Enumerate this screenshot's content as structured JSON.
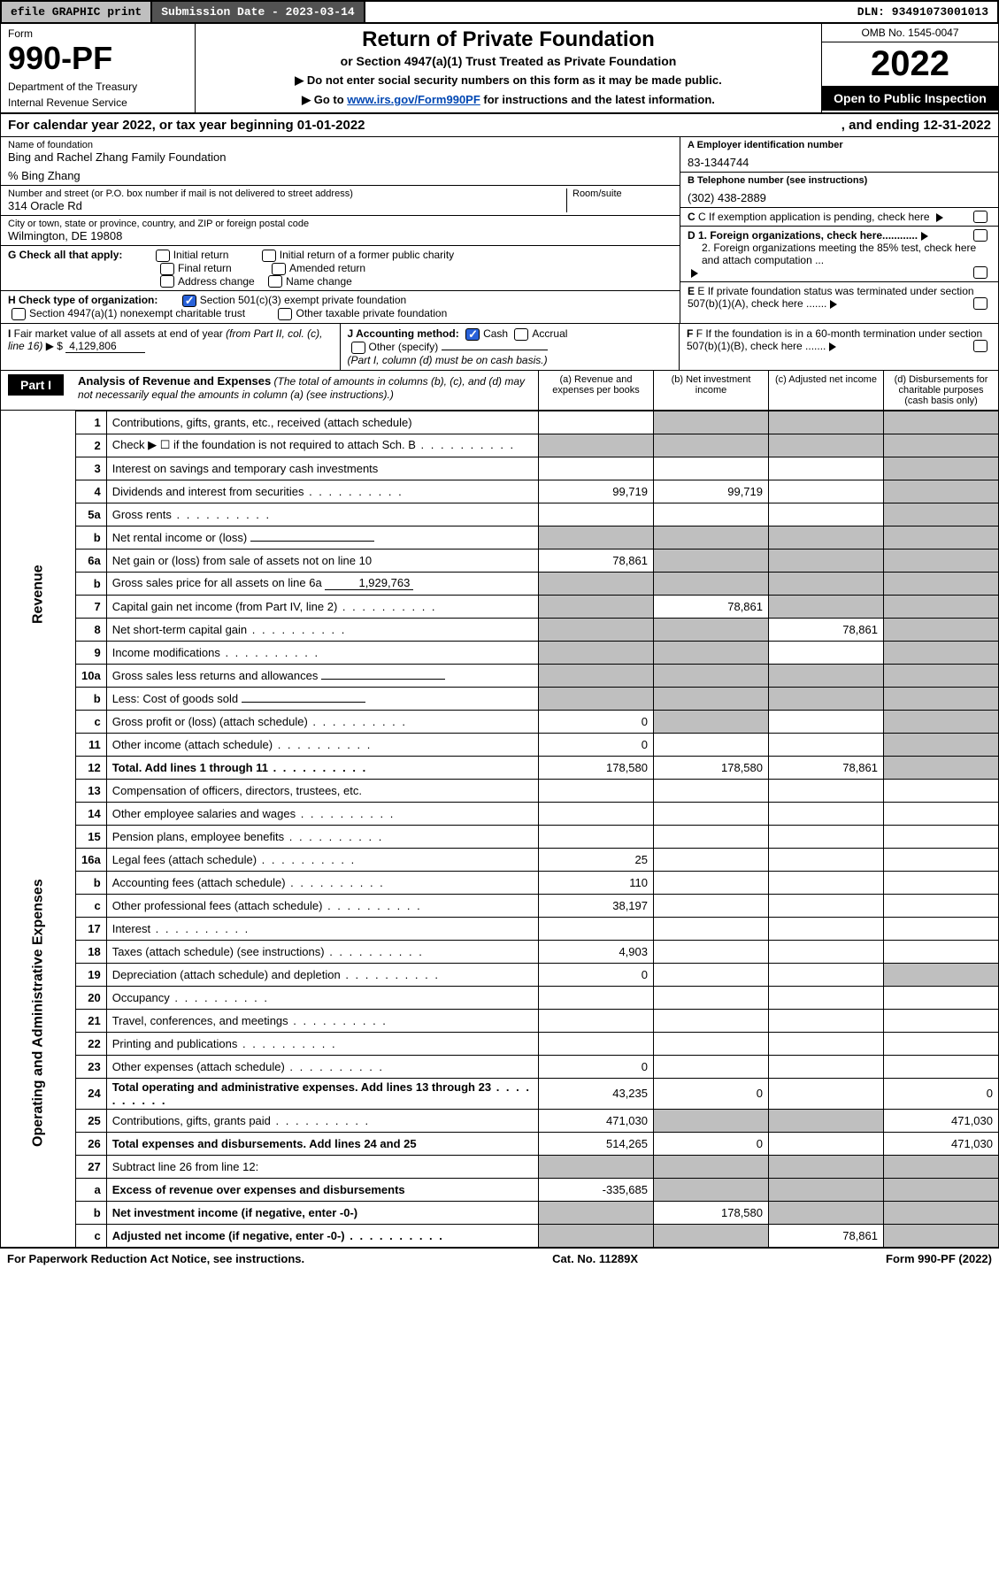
{
  "topbar": {
    "efile": "efile GRAPHIC print",
    "subdate_lbl": "Submission Date - 2023-03-14",
    "dln": "DLN: 93491073001013"
  },
  "header": {
    "form_lbl": "Form",
    "form_num": "990-PF",
    "dept": "Department of the Treasury",
    "irs": "Internal Revenue Service",
    "title": "Return of Private Foundation",
    "subtitle": "or Section 4947(a)(1) Trust Treated as Private Foundation",
    "instr1": "▶ Do not enter social security numbers on this form as it may be made public.",
    "instr2_pre": "▶ Go to ",
    "instr2_link": "www.irs.gov/Form990PF",
    "instr2_post": " for instructions and the latest information.",
    "omb": "OMB No. 1545-0047",
    "year": "2022",
    "open": "Open to Public Inspection"
  },
  "calyear": {
    "text": "For calendar year 2022, or tax year beginning 01-01-2022",
    "ending": ", and ending 12-31-2022"
  },
  "ident": {
    "name_lbl": "Name of foundation",
    "name": "Bing and Rachel Zhang Family Foundation",
    "care_of": "% Bing Zhang",
    "addr_lbl": "Number and street (or P.O. box number if mail is not delivered to street address)",
    "addr": "314 Oracle Rd",
    "room_lbl": "Room/suite",
    "city_lbl": "City or town, state or province, country, and ZIP or foreign postal code",
    "city": "Wilmington, DE  19808",
    "A_lbl": "A Employer identification number",
    "A_val": "83-1344744",
    "B_lbl": "B Telephone number (see instructions)",
    "B_val": "(302) 438-2889",
    "C_lbl": "C If exemption application is pending, check here",
    "D1_lbl": "D 1. Foreign organizations, check here............",
    "D2_lbl": "2. Foreign organizations meeting the 85% test, check here and attach computation ...",
    "E_lbl": "E  If private foundation status was terminated under section 507(b)(1)(A), check here .......",
    "F_lbl": "F  If the foundation is in a 60-month termination under section 507(b)(1)(B), check here .......",
    "G_lbl": "G Check all that apply:",
    "G_opts": [
      "Initial return",
      "Final return",
      "Address change",
      "Initial return of a former public charity",
      "Amended return",
      "Name change"
    ],
    "H_lbl": "H Check type of organization:",
    "H_opt1": "Section 501(c)(3) exempt private foundation",
    "H_opt2": "Section 4947(a)(1) nonexempt charitable trust",
    "H_opt3": "Other taxable private foundation",
    "I_lbl": "I Fair market value of all assets at end of year (from Part II, col. (c), line 16) ▶ $",
    "I_val": "4,129,806",
    "J_lbl": "J Accounting method:",
    "J_cash": "Cash",
    "J_accr": "Accrual",
    "J_other": "Other (specify)",
    "J_note": "(Part I, column (d) must be on cash basis.)"
  },
  "part1": {
    "part_lbl": "Part I",
    "title": "Analysis of Revenue and Expenses",
    "title_note": " (The total of amounts in columns (b), (c), and (d) may not necessarily equal the amounts in column (a) (see instructions).)",
    "col_a": "(a) Revenue and expenses per books",
    "col_b": "(b) Net investment income",
    "col_c": "(c) Adjusted net income",
    "col_d": "(d) Disbursements for charitable purposes (cash basis only)",
    "side_rev": "Revenue",
    "side_exp": "Operating and Administrative Expenses"
  },
  "rows": [
    {
      "n": "1",
      "d": "Contributions, gifts, grants, etc., received (attach schedule)",
      "a": "",
      "b": "grey",
      "c": "grey",
      "dd": "grey"
    },
    {
      "n": "2",
      "d": "Check ▶ ☐ if the foundation is not required to attach Sch. B",
      "dots": true,
      "a": "grey",
      "b": "grey",
      "c": "grey",
      "dd": "grey"
    },
    {
      "n": "3",
      "d": "Interest on savings and temporary cash investments",
      "a": "",
      "b": "",
      "c": "",
      "dd": "grey"
    },
    {
      "n": "4",
      "d": "Dividends and interest from securities",
      "dots": true,
      "a": "99,719",
      "b": "99,719",
      "c": "",
      "dd": "grey"
    },
    {
      "n": "5a",
      "d": "Gross rents",
      "dots": true,
      "a": "",
      "b": "",
      "c": "",
      "dd": "grey"
    },
    {
      "n": "b",
      "d": "Net rental income or (loss)",
      "a": "grey",
      "b": "grey",
      "c": "grey",
      "dd": "grey",
      "inline": true
    },
    {
      "n": "6a",
      "d": "Net gain or (loss) from sale of assets not on line 10",
      "a": "78,861",
      "b": "grey",
      "c": "grey",
      "dd": "grey"
    },
    {
      "n": "b",
      "d": "Gross sales price for all assets on line 6a",
      "a": "grey",
      "b": "grey",
      "c": "grey",
      "dd": "grey",
      "inline": true,
      "inline_val": "1,929,763"
    },
    {
      "n": "7",
      "d": "Capital gain net income (from Part IV, line 2)",
      "dots": true,
      "a": "grey",
      "b": "78,861",
      "c": "grey",
      "dd": "grey"
    },
    {
      "n": "8",
      "d": "Net short-term capital gain",
      "dots": true,
      "a": "grey",
      "b": "grey",
      "c": "78,861",
      "dd": "grey"
    },
    {
      "n": "9",
      "d": "Income modifications",
      "dots": true,
      "a": "grey",
      "b": "grey",
      "c": "",
      "dd": "grey"
    },
    {
      "n": "10a",
      "d": "Gross sales less returns and allowances",
      "a": "grey",
      "b": "grey",
      "c": "grey",
      "dd": "grey",
      "inline": true
    },
    {
      "n": "b",
      "d": "Less: Cost of goods sold",
      "dots": true,
      "a": "grey",
      "b": "grey",
      "c": "grey",
      "dd": "grey",
      "inline": true
    },
    {
      "n": "c",
      "d": "Gross profit or (loss) (attach schedule)",
      "dots": true,
      "a": "0",
      "b": "grey",
      "c": "",
      "dd": "grey"
    },
    {
      "n": "11",
      "d": "Other income (attach schedule)",
      "dots": true,
      "a": "0",
      "b": "",
      "c": "",
      "dd": "grey"
    },
    {
      "n": "12",
      "d": "Total. Add lines 1 through 11",
      "dots": true,
      "bold": true,
      "a": "178,580",
      "b": "178,580",
      "c": "78,861",
      "dd": "grey"
    },
    {
      "n": "13",
      "d": "Compensation of officers, directors, trustees, etc.",
      "a": "",
      "b": "",
      "c": "",
      "dd": ""
    },
    {
      "n": "14",
      "d": "Other employee salaries and wages",
      "dots": true,
      "a": "",
      "b": "",
      "c": "",
      "dd": ""
    },
    {
      "n": "15",
      "d": "Pension plans, employee benefits",
      "dots": true,
      "a": "",
      "b": "",
      "c": "",
      "dd": ""
    },
    {
      "n": "16a",
      "d": "Legal fees (attach schedule)",
      "dots": true,
      "a": "25",
      "b": "",
      "c": "",
      "dd": ""
    },
    {
      "n": "b",
      "d": "Accounting fees (attach schedule)",
      "dots": true,
      "a": "110",
      "b": "",
      "c": "",
      "dd": ""
    },
    {
      "n": "c",
      "d": "Other professional fees (attach schedule)",
      "dots": true,
      "a": "38,197",
      "b": "",
      "c": "",
      "dd": ""
    },
    {
      "n": "17",
      "d": "Interest",
      "dots": true,
      "a": "",
      "b": "",
      "c": "",
      "dd": ""
    },
    {
      "n": "18",
      "d": "Taxes (attach schedule) (see instructions)",
      "dots": true,
      "a": "4,903",
      "b": "",
      "c": "",
      "dd": ""
    },
    {
      "n": "19",
      "d": "Depreciation (attach schedule) and depletion",
      "dots": true,
      "a": "0",
      "b": "",
      "c": "",
      "dd": "grey"
    },
    {
      "n": "20",
      "d": "Occupancy",
      "dots": true,
      "a": "",
      "b": "",
      "c": "",
      "dd": ""
    },
    {
      "n": "21",
      "d": "Travel, conferences, and meetings",
      "dots": true,
      "a": "",
      "b": "",
      "c": "",
      "dd": ""
    },
    {
      "n": "22",
      "d": "Printing and publications",
      "dots": true,
      "a": "",
      "b": "",
      "c": "",
      "dd": ""
    },
    {
      "n": "23",
      "d": "Other expenses (attach schedule)",
      "dots": true,
      "a": "0",
      "b": "",
      "c": "",
      "dd": ""
    },
    {
      "n": "24",
      "d": "Total operating and administrative expenses. Add lines 13 through 23",
      "dots": true,
      "bold": true,
      "a": "43,235",
      "b": "0",
      "c": "",
      "dd": "0"
    },
    {
      "n": "25",
      "d": "Contributions, gifts, grants paid",
      "dots": true,
      "a": "471,030",
      "b": "grey",
      "c": "grey",
      "dd": "471,030"
    },
    {
      "n": "26",
      "d": "Total expenses and disbursements. Add lines 24 and 25",
      "bold": true,
      "a": "514,265",
      "b": "0",
      "c": "",
      "dd": "471,030"
    },
    {
      "n": "27",
      "d": "Subtract line 26 from line 12:",
      "a": "grey",
      "b": "grey",
      "c": "grey",
      "dd": "grey"
    },
    {
      "n": "a",
      "d": "Excess of revenue over expenses and disbursements",
      "bold": true,
      "a": "-335,685",
      "b": "grey",
      "c": "grey",
      "dd": "grey"
    },
    {
      "n": "b",
      "d": "Net investment income (if negative, enter -0-)",
      "bold": true,
      "a": "grey",
      "b": "178,580",
      "c": "grey",
      "dd": "grey"
    },
    {
      "n": "c",
      "d": "Adjusted net income (if negative, enter -0-)",
      "dots": true,
      "bold": true,
      "a": "grey",
      "b": "grey",
      "c": "78,861",
      "dd": "grey"
    }
  ],
  "footer": {
    "left": "For Paperwork Reduction Act Notice, see instructions.",
    "mid": "Cat. No. 11289X",
    "right": "Form 990-PF (2022)"
  },
  "colors": {
    "grey": "#bfbfbf",
    "darkgrey": "#525252",
    "link": "#0047b3",
    "checked": "#2962d9"
  }
}
